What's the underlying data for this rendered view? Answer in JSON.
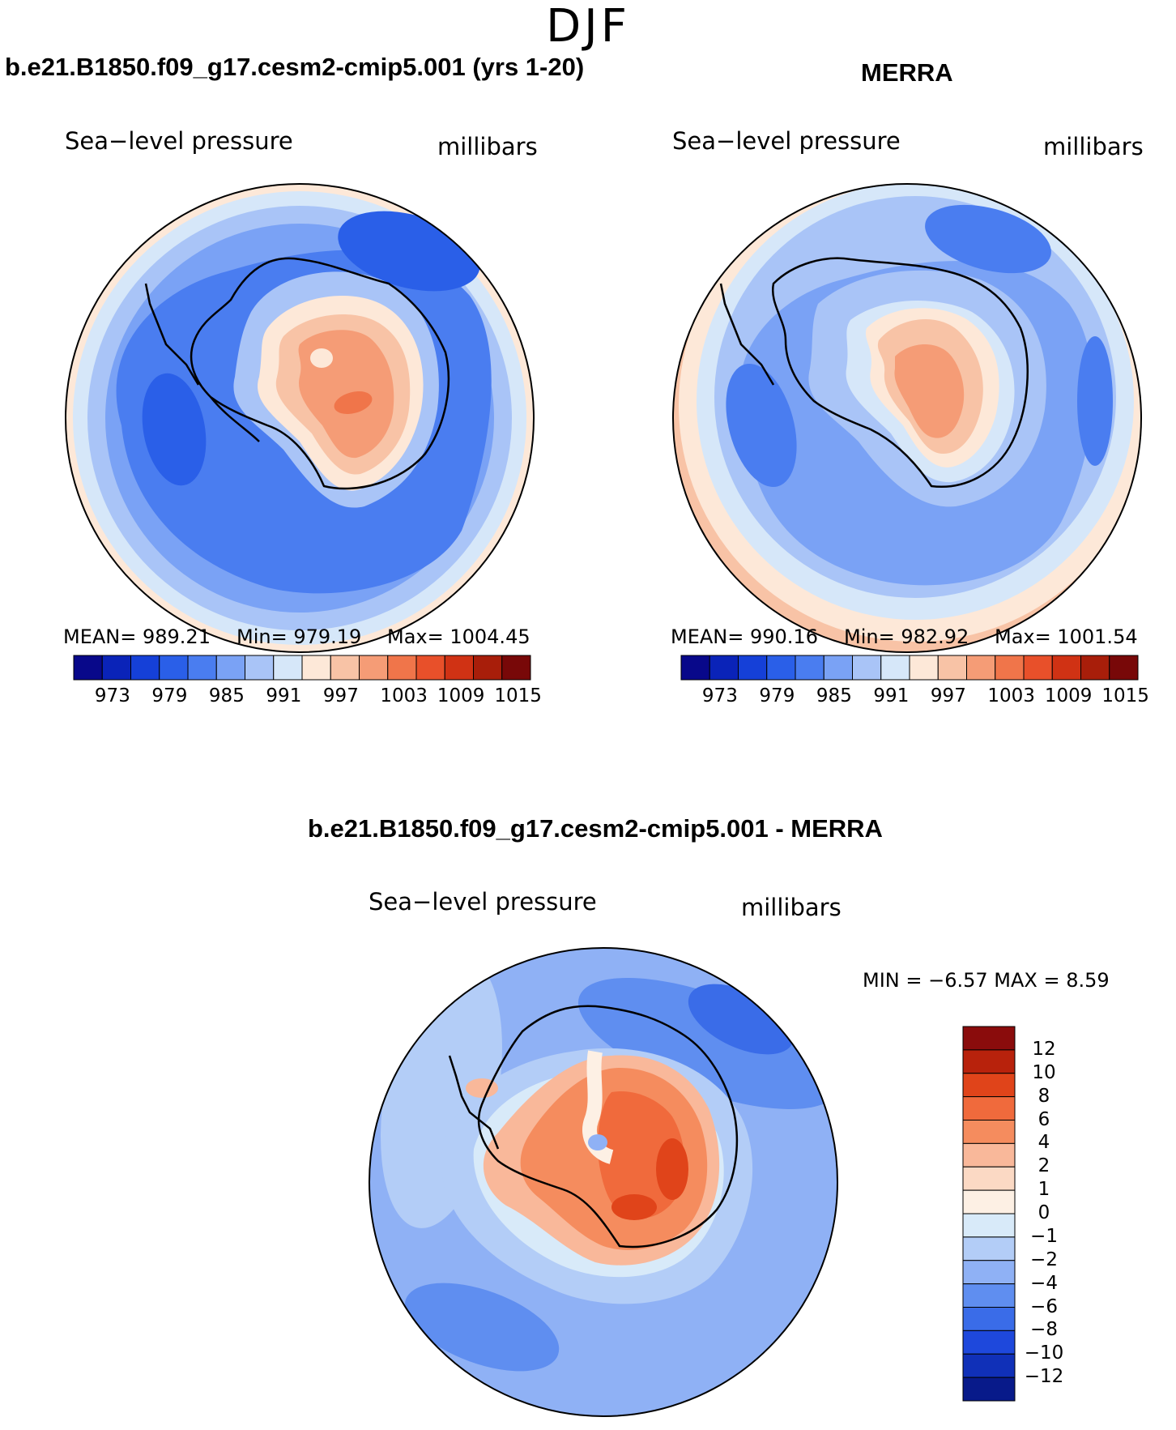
{
  "page": {
    "season_title": "DJF"
  },
  "panels": [
    {
      "title": "b.e21.B1850.f09_g17.cesm2-cmip5.001 (yrs 1-20)",
      "variable": "Sea−level pressure",
      "units": "millibars",
      "stats": {
        "mean": "MEAN= 989.21",
        "min": "Min= 979.19",
        "max": "Max= 1004.45"
      }
    },
    {
      "title": "MERRA",
      "variable": "Sea−level pressure",
      "units": "millibars",
      "stats": {
        "mean": "MEAN= 990.16",
        "min": "Min= 982.92",
        "max": "Max= 1001.54"
      }
    }
  ],
  "abs_colorbar": {
    "colors": [
      "#08088a",
      "#0a23b8",
      "#1540d8",
      "#2a5fe8",
      "#4a7df0",
      "#7aa2f5",
      "#a9c4f7",
      "#d6e7f9",
      "#fde8d8",
      "#f8c3a6",
      "#f59c76",
      "#f0754a",
      "#e8502a",
      "#d03214",
      "#a81e0a",
      "#780808"
    ],
    "tick_labels": [
      "973",
      "979",
      "985",
      "991",
      "997",
      "1003",
      "1009",
      "1015"
    ]
  },
  "diff_panel": {
    "title": "b.e21.B1850.f09_g17.cesm2-cmip5.001 - MERRA",
    "variable": "Sea−level pressure",
    "units": "millibars",
    "minmax": "MIN =   −6.57  MAX =    8.59",
    "colorbar": {
      "colors_top_to_bottom": [
        "#8a0c0c",
        "#b8220c",
        "#e0441a",
        "#f06a3c",
        "#f58c5e",
        "#f9b89a",
        "#fbd9c4",
        "#fdf0e4",
        "#d8eaf9",
        "#b3cdf7",
        "#8fb1f5",
        "#5f8ef0",
        "#3a6ce8",
        "#1e48dc",
        "#1030b8",
        "#081a8a"
      ],
      "tick_labels": [
        "12",
        "10",
        "8",
        "6",
        "4",
        "2",
        "1",
        "0",
        "−1",
        "−2",
        "−4",
        "−6",
        "−8",
        "−10",
        "−12"
      ]
    }
  }
}
